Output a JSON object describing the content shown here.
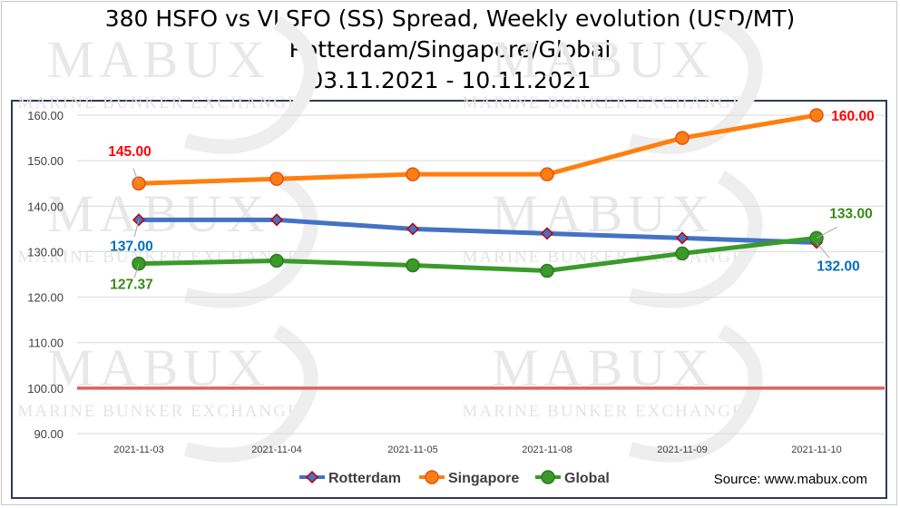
{
  "title": {
    "line1": "380 HSFO vs VLSFO (SS) Spread, Weekly evolution (USD/MT)",
    "line2": "Rotterdam/Singapore/Global",
    "line3": "03.11.2021 - 10.11.2021"
  },
  "watermark": {
    "brand": "MABUX",
    "tagline": "MARINE BUNKER EXCHANGE"
  },
  "source": "Source: www.mabux.com",
  "colors": {
    "rotterdam": "#4472c4",
    "rotterdam_marker": "#c00000",
    "singapore": "#ff7f0e",
    "singapore_marker": "#e05020",
    "global": "#3a9a2a",
    "reference_line": "#e06060",
    "label_red": "#ff0000",
    "label_blue": "#0070c0",
    "label_green": "#3a8a1a",
    "grid": "#d9d9d9"
  },
  "chart_data": {
    "type": "line",
    "title": "380 HSFO vs VLSFO (SS) Spread, Weekly evolution (USD/MT)",
    "categories": [
      "2021-11-03",
      "2021-11-04",
      "2021-11-05",
      "2021-11-08",
      "2021-11-09",
      "2021-11-10"
    ],
    "ylim": [
      90,
      160
    ],
    "yticks": [
      "90.00",
      "100.00",
      "110.00",
      "120.00",
      "130.00",
      "140.00",
      "150.00",
      "160.00"
    ],
    "grid": true,
    "legend_position": "bottom",
    "reference_line": 100,
    "series": [
      {
        "name": "Rotterdam",
        "values": [
          137,
          137,
          135,
          134,
          133,
          132
        ],
        "marker": "diamond"
      },
      {
        "name": "Singapore",
        "values": [
          145,
          146,
          147,
          147,
          155,
          160
        ],
        "marker": "circle"
      },
      {
        "name": "Global",
        "values": [
          127.37,
          128,
          127,
          125.8,
          129.6,
          133
        ],
        "marker": "circle"
      }
    ],
    "data_labels": [
      {
        "series": "Singapore",
        "index": 0,
        "text": "145.00"
      },
      {
        "series": "Singapore",
        "index": 5,
        "text": "160.00"
      },
      {
        "series": "Rotterdam",
        "index": 0,
        "text": "137.00"
      },
      {
        "series": "Rotterdam",
        "index": 5,
        "text": "132.00"
      },
      {
        "series": "Global",
        "index": 0,
        "text": "127.37"
      },
      {
        "series": "Global",
        "index": 5,
        "text": "133.00"
      }
    ]
  }
}
